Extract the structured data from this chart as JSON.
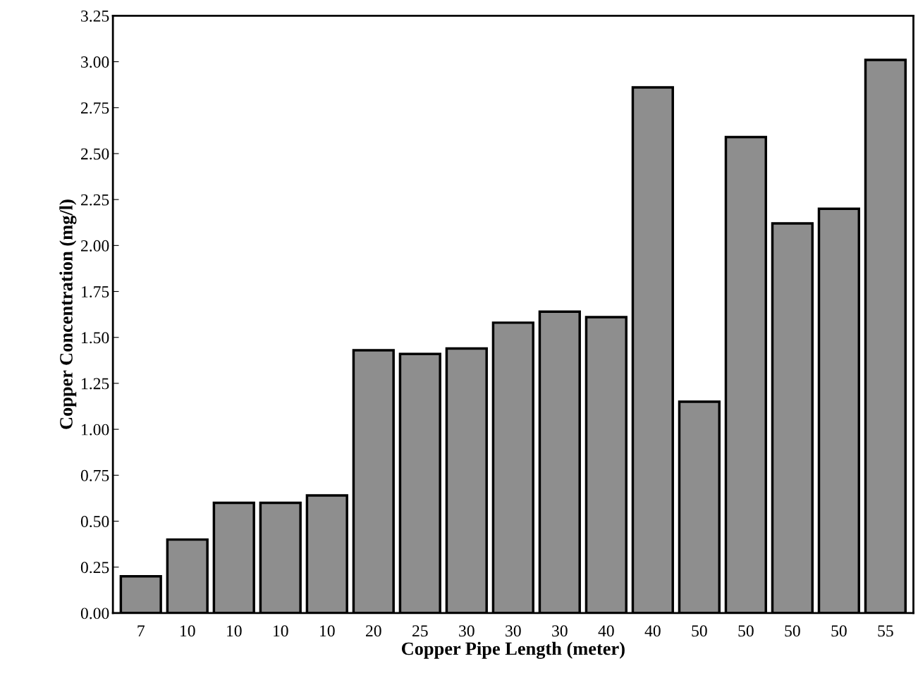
{
  "chart_data": {
    "type": "bar",
    "xlabel": "Copper Pipe Length (meter)",
    "ylabel": "Copper Concentration (mg/l)",
    "categories": [
      "7",
      "10",
      "10",
      "10",
      "10",
      "20",
      "25",
      "30",
      "30",
      "30",
      "40",
      "40",
      "50",
      "50",
      "50",
      "50",
      "55"
    ],
    "values": [
      0.2,
      0.4,
      0.6,
      0.6,
      0.64,
      1.43,
      1.41,
      1.44,
      1.58,
      1.64,
      1.61,
      2.86,
      1.15,
      2.59,
      2.12,
      2.2,
      3.01
    ],
    "color": "#8e8e8e",
    "ylim": [
      0,
      3.25
    ],
    "yticks": [
      {
        "value": 0,
        "label": "0.00"
      },
      {
        "value": 0.25,
        "label": "0.25"
      },
      {
        "value": 0.5,
        "label": "0.50"
      },
      {
        "value": 0.75,
        "label": "0.75"
      },
      {
        "value": 1,
        "label": "1.00"
      },
      {
        "value": 1.25,
        "label": "1.25"
      },
      {
        "value": 1.5,
        "label": "1.50"
      },
      {
        "value": 1.75,
        "label": "1.75"
      },
      {
        "value": 2,
        "label": "2.00"
      },
      {
        "value": 2.25,
        "label": "2.25"
      },
      {
        "value": 2.5,
        "label": "2.50"
      },
      {
        "value": 2.75,
        "label": "2.75"
      },
      {
        "value": 3,
        "label": "3.00"
      },
      {
        "value": 3.25,
        "label": "3.25"
      }
    ],
    "grid": false,
    "legend": false
  }
}
